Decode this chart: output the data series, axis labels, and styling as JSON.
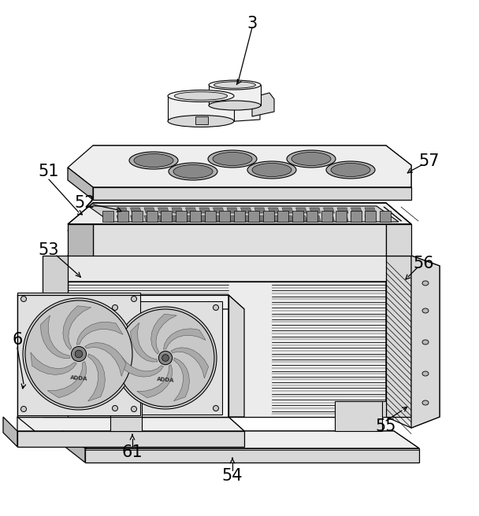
{
  "background_color": "#ffffff",
  "line_color": "#000000",
  "label_fontsize": 15,
  "figsize": [
    6.08,
    6.56
  ],
  "dpi": 100,
  "colors": {
    "light": "#f0f0f0",
    "mid": "#d8d8d8",
    "dark": "#b8b8b8",
    "white": "#ffffff",
    "fan_bg": "#e8e8e8",
    "blade": "#aaaaaa"
  }
}
